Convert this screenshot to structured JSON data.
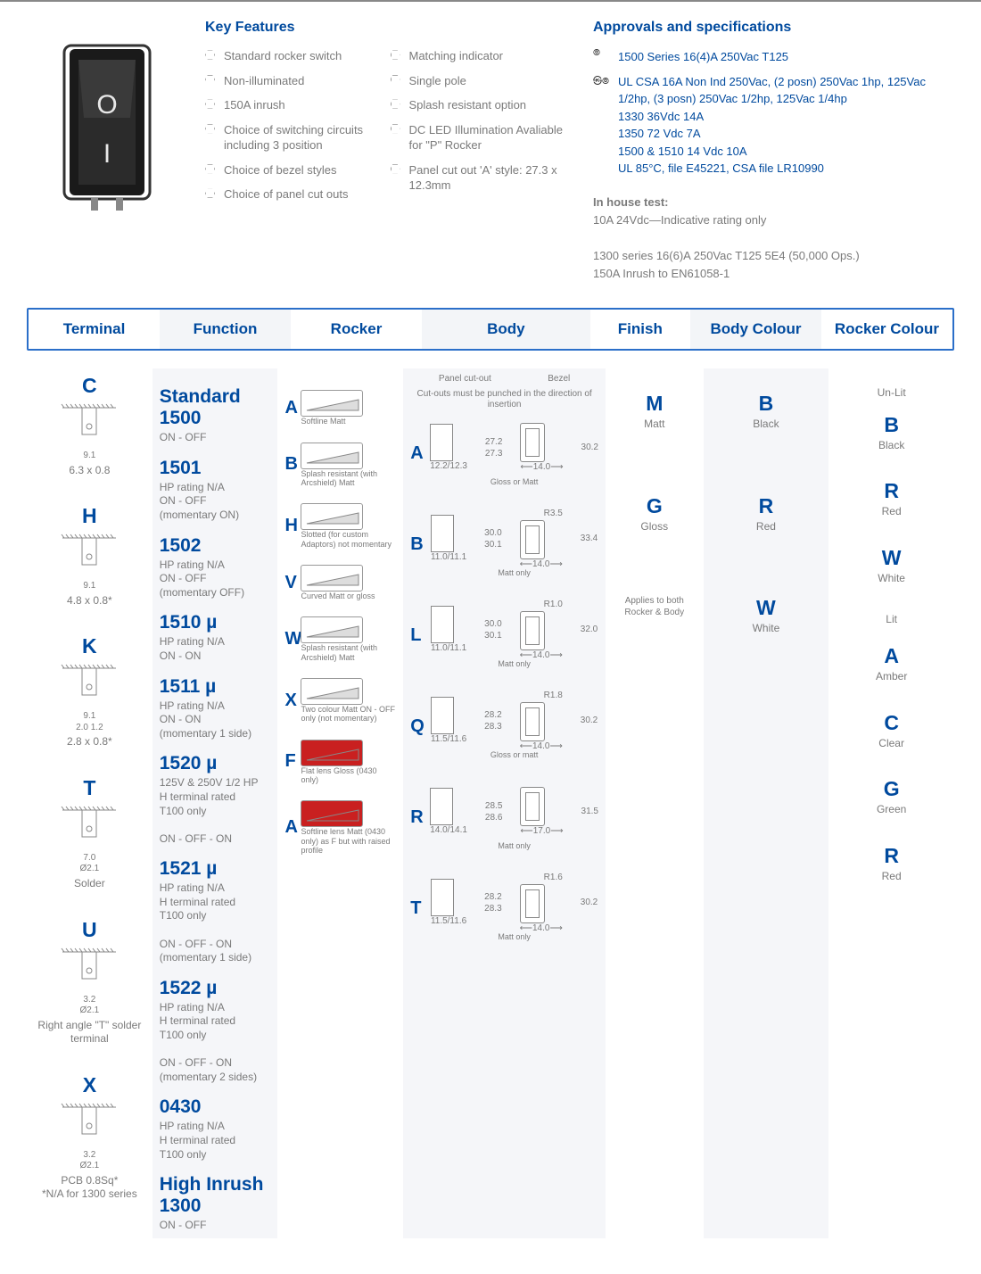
{
  "colors": {
    "blue": "#004a9e",
    "text": "#7a7a7a",
    "altbg": "#f5f6f9",
    "border": "#2b6fc9"
  },
  "key_features": {
    "title": "Key Features",
    "left": [
      "Standard rocker switch",
      "Non-illuminated",
      "150A inrush",
      "Choice of switching circuits including 3 position",
      "Choice of bezel styles",
      "Choice of panel cut outs"
    ],
    "right": [
      "Matching indicator",
      "Single pole",
      "Splash resistant option",
      "DC LED Illumination Avaliable for \"P\" Rocker",
      "Panel cut out 'A' style: 27.3 x 12.3mm"
    ]
  },
  "approvals": {
    "title": "Approvals and specifications",
    "cert1": {
      "icon": "⦾",
      "text": "1500 Series 16(4)A 250Vac T125"
    },
    "cert2": {
      "icon": "㉿⦾",
      "lines": [
        "UL CSA 16A Non Ind 250Vac, (2 posn) 250Vac 1hp, 125Vac",
        "1/2hp, (3 posn) 250Vac 1/2hp, 125Vac 1/4hp",
        "1330 36Vdc 14A",
        "1350 72 Vdc 7A",
        "1500 & 1510 14 Vdc 10A",
        "UL 85°C, file E45221, CSA file LR10990"
      ]
    },
    "inhouse_label": "In house test:",
    "inhouse_lines": [
      "10A 24Vdc—Indicative rating only",
      "",
      "1300 series 16(6)A 250Vac T125 5E4 (50,000 Ops.)",
      "150A Inrush to EN61058-1"
    ]
  },
  "headers": [
    "Terminal",
    "Function",
    "Rocker",
    "Body",
    "Finish",
    "Body Colour",
    "Rocker Colour"
  ],
  "terminals": [
    {
      "code": "C",
      "dim": "9.1",
      "foot": "6.3 x 0.8"
    },
    {
      "code": "H",
      "dim": "9.1",
      "foot": "4.8 x 0.8*"
    },
    {
      "code": "K",
      "dim": "9.1",
      "extra": "2.0  1.2",
      "foot": "2.8 x 0.8*"
    },
    {
      "code": "T",
      "dim": "7.0",
      "extra": "Ø2.1",
      "foot": "Solder"
    },
    {
      "code": "U",
      "dim": "3.2",
      "extra": "Ø2.1",
      "foot": "Right angle \"T\" solder terminal"
    },
    {
      "code": "X",
      "dim": "3.2",
      "extra": "Ø2.1",
      "foot": "PCB 0.8Sq*\n*N/A for 1300 series"
    }
  ],
  "functions": [
    {
      "code": "Standard 1500",
      "sub": "ON - OFF"
    },
    {
      "code": "1501",
      "sub": "HP rating N/A\nON - OFF\n(momentary ON)"
    },
    {
      "code": "1502",
      "sub": "HP rating N/A\nON - OFF\n(momentary OFF)"
    },
    {
      "code": "1510 µ",
      "sub": "HP rating N/A\nON - ON"
    },
    {
      "code": "1511 µ",
      "sub": "HP rating N/A\nON - ON\n(momentary 1 side)"
    },
    {
      "code": "1520 µ",
      "sub": "125V & 250V 1/2 HP\nH terminal rated\nT100 only\n\nON - OFF - ON"
    },
    {
      "code": "1521 µ",
      "sub": "HP rating N/A\nH terminal rated\nT100 only\n\nON - OFF - ON\n(momentary 1 side)"
    },
    {
      "code": "1522 µ",
      "sub": "HP rating N/A\nH terminal rated\nT100 only\n\nON - OFF - ON\n(momentary 2 sides)"
    },
    {
      "code": "0430",
      "sub": "HP rating N/A\nH terminal rated\nT100 only"
    },
    {
      "code": "High Inrush 1300",
      "sub": "ON - OFF"
    }
  ],
  "rockers": [
    {
      "code": "A",
      "desc": "Softline Matt"
    },
    {
      "code": "B",
      "desc": "Splash resistant (with Arcshield) Matt"
    },
    {
      "code": "H",
      "desc": "Slotted (for custom Adaptors) not momentary"
    },
    {
      "code": "V",
      "desc": "Curved Matt or gloss"
    },
    {
      "code": "W",
      "desc": "Splash resistant (with Arcshield) Matt"
    },
    {
      "code": "X",
      "desc": "Two colour Matt ON - OFF only (not momentary)"
    },
    {
      "code": "F",
      "desc": "Flat lens Gloss (0430 only)",
      "color": "#c92020"
    },
    {
      "code": "A",
      "desc": "Softline lens Matt (0430 only) as F but with raised profile",
      "color": "#c92020"
    }
  ],
  "body_header": {
    "l": "Panel cut-out",
    "r": "Bezel",
    "note": "Cut-outs must be punched in the direction of insertion"
  },
  "bodies": [
    {
      "code": "A",
      "cut": "27.2\n27.3",
      "cutw": "12.2/12.3",
      "bez": "30.2",
      "bezw": "14.0",
      "cap": "Gloss or Matt"
    },
    {
      "code": "B",
      "cut": "30.0\n30.1",
      "cutw": "11.0/11.1",
      "bez": "33.4",
      "bezw": "14.0",
      "r": "R3.5",
      "cap": "Matt only"
    },
    {
      "code": "L",
      "cut": "30.0\n30.1",
      "cutw": "11.0/11.1",
      "bez": "32.0",
      "bezw": "14.0",
      "r": "R1.0",
      "cap": "Matt only"
    },
    {
      "code": "Q",
      "cut": "28.2\n28.3",
      "cutw": "11.5/11.6",
      "bez": "30.2",
      "bezw": "14.0",
      "r": "R1.8",
      "cap": "Gloss or matt"
    },
    {
      "code": "R",
      "cut": "28.5\n28.6",
      "cutw": "14.0/14.1",
      "bez": "31.5",
      "bezw": "17.0",
      "cap": "Matt only"
    },
    {
      "code": "T",
      "cut": "28.2\n28.3",
      "cutw": "11.5/11.6",
      "bez": "30.2",
      "bezw": "14.0",
      "r": "R1.6",
      "cap": "Matt only"
    }
  ],
  "finishes": [
    {
      "code": "M",
      "name": "Matt"
    },
    {
      "code": "G",
      "name": "Gloss"
    }
  ],
  "finish_note": "Applies to both Rocker & Body",
  "body_colours": [
    {
      "code": "B",
      "name": "Black"
    },
    {
      "code": "R",
      "name": "Red"
    },
    {
      "code": "W",
      "name": "White"
    }
  ],
  "rocker_colours": {
    "unlit_label": "Un-Lit",
    "unlit": [
      {
        "code": "B",
        "name": "Black"
      },
      {
        "code": "R",
        "name": "Red"
      },
      {
        "code": "W",
        "name": "White"
      }
    ],
    "lit_label": "Lit",
    "lit": [
      {
        "code": "A",
        "name": "Amber"
      },
      {
        "code": "C",
        "name": "Clear"
      },
      {
        "code": "G",
        "name": "Green"
      },
      {
        "code": "R",
        "name": "Red"
      }
    ]
  }
}
